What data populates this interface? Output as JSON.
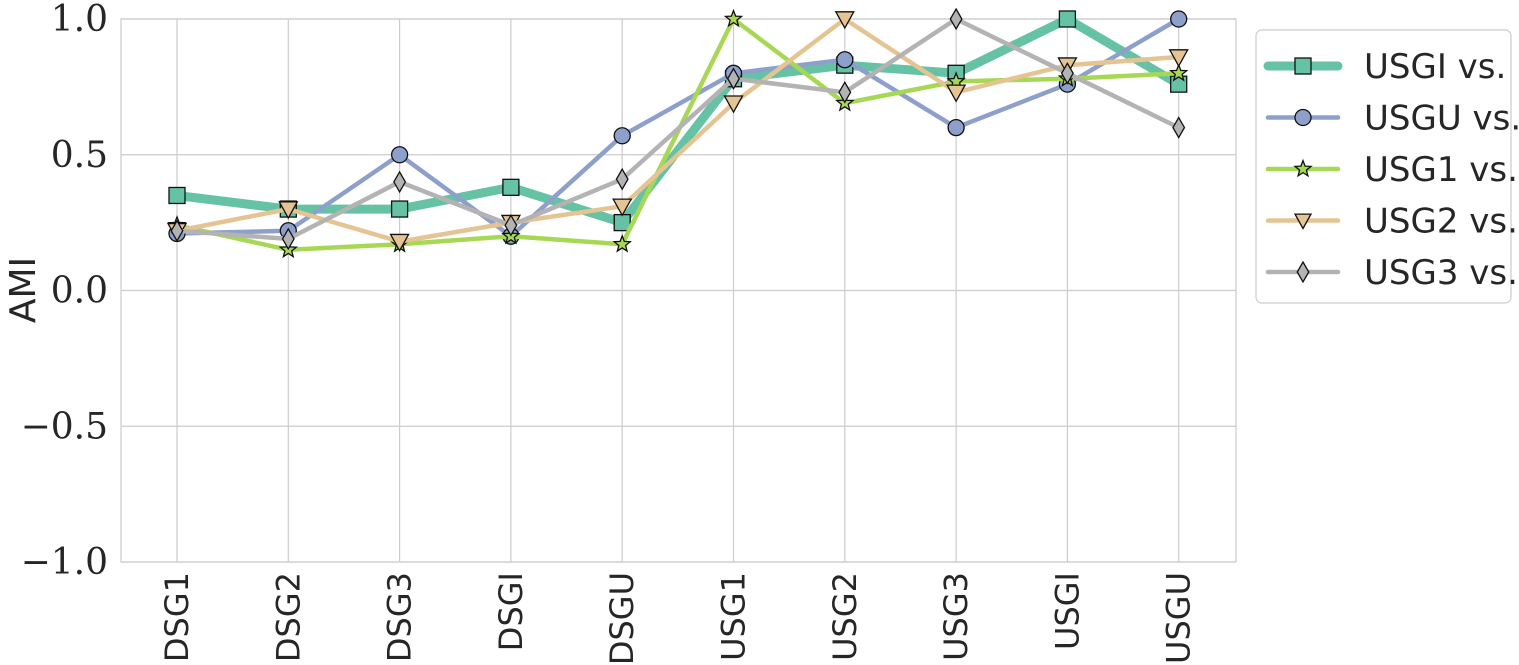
{
  "chart_data": {
    "type": "line",
    "title": "",
    "xlabel": "",
    "ylabel": "AMI",
    "ylim": [
      -1.0,
      1.0
    ],
    "yticks": [
      -1.0,
      -0.5,
      0.0,
      0.5,
      1.0
    ],
    "ytick_labels": [
      "−1.0",
      "−0.5",
      "0.0",
      "0.5",
      "1.0"
    ],
    "grid": true,
    "legend_position": "outside-top-right",
    "categories": [
      "DSG1",
      "DSG2",
      "DSG3",
      "DSGI",
      "DSGU",
      "USG1",
      "USG2",
      "USG3",
      "USGI",
      "USGU"
    ],
    "series": [
      {
        "name": "USGI vs.",
        "color": "#66c2a5",
        "marker": "square",
        "emphasis": true,
        "values": [
          0.35,
          0.3,
          0.3,
          0.38,
          0.25,
          0.78,
          0.83,
          0.8,
          1.0,
          0.76
        ]
      },
      {
        "name": "USGU vs.",
        "color": "#8da0cb",
        "marker": "circle",
        "values": [
          0.21,
          0.22,
          0.5,
          0.2,
          0.57,
          0.8,
          0.85,
          0.6,
          0.76,
          1.0
        ]
      },
      {
        "name": "USG1 vs.",
        "color": "#a6d854",
        "marker": "star",
        "values": [
          0.24,
          0.15,
          0.17,
          0.2,
          0.17,
          1.0,
          0.69,
          0.77,
          0.78,
          0.8
        ]
      },
      {
        "name": "USG2 vs.",
        "color": "#e5c494",
        "marker": "triangle-down",
        "values": [
          0.22,
          0.3,
          0.18,
          0.25,
          0.31,
          0.69,
          1.0,
          0.73,
          0.83,
          0.86
        ]
      },
      {
        "name": "USG3 vs.",
        "color": "#b3b3b3",
        "marker": "diamond",
        "values": [
          0.22,
          0.19,
          0.4,
          0.24,
          0.41,
          0.78,
          0.73,
          1.0,
          0.8,
          0.6
        ]
      }
    ]
  }
}
